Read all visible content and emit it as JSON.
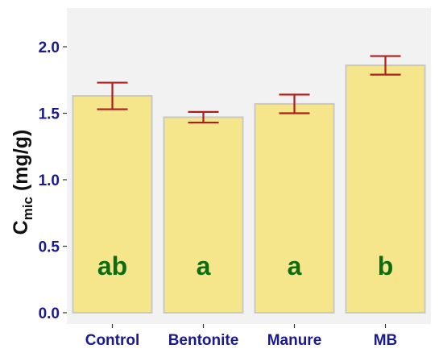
{
  "chart_data": {
    "type": "bar",
    "categories": [
      "Control",
      "Bentonite",
      "Manure",
      "MB"
    ],
    "values": [
      1.63,
      1.47,
      1.57,
      1.86
    ],
    "error_low": [
      1.53,
      1.43,
      1.5,
      1.79
    ],
    "error_high": [
      1.73,
      1.51,
      1.64,
      1.93
    ],
    "significance_labels": [
      "ab",
      "a",
      "a",
      "b"
    ],
    "ylabel_main": "C",
    "ylabel_sub": "mic",
    "ylabel_unit": " (mg/g)",
    "ylim": [
      0,
      2.2
    ],
    "yticks": [
      "0.0",
      "0.5",
      "1.0",
      "1.5",
      "2.0"
    ],
    "grid": false,
    "colors": {
      "bar_fill": "#f5e68c",
      "bar_stroke": "#c8c8c8",
      "error_bar": "#b01c1c",
      "panel_bg": "#f2f2f2",
      "tick_text": "#1a1a8c",
      "sig_text": "#0f6b0f"
    }
  }
}
